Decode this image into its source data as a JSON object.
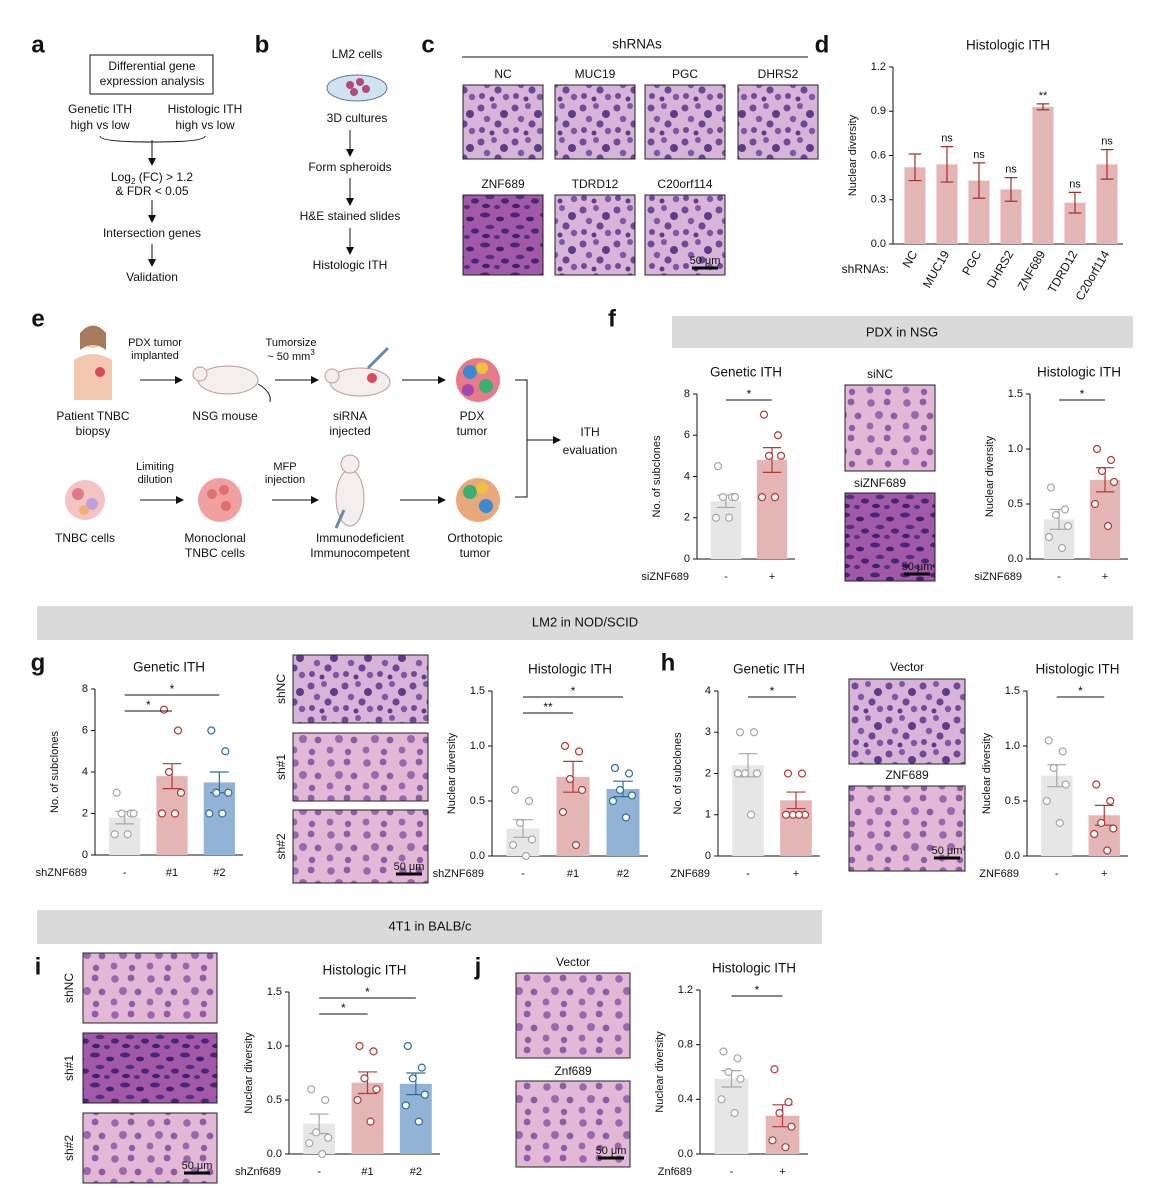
{
  "panel_labels": [
    "a",
    "b",
    "c",
    "d",
    "e",
    "f",
    "g",
    "h",
    "i",
    "j"
  ],
  "panel_a": {
    "box": [
      "Differential gene",
      "expression analysis"
    ],
    "genetic": [
      "Genetic ITH",
      "high vs low"
    ],
    "histologic": [
      "Histologic ITH",
      "high vs low"
    ],
    "criteria": {
      "log": "Log",
      "sub": "2",
      "rest": " (FC) > 1.2",
      "fdr": "& FDR < 0.05"
    },
    "steps": [
      "Intersection genes",
      "Validation"
    ]
  },
  "panel_b": {
    "steps": [
      "LM2 cells",
      "3D cultures",
      "Form spheroids",
      "H&E stained slides",
      "Histologic ITH"
    ]
  },
  "panel_c": {
    "header": "shRNAs",
    "images": [
      "NC",
      "MUC19",
      "PGC",
      "DHRS2",
      "ZNF689",
      "TDRD12",
      "C20orf114"
    ]
  },
  "scale_bar": "50 μm",
  "panel_e": {
    "implant": [
      "PDX tumor",
      "implanted"
    ],
    "size": "Tumorsize",
    "size_value": "~ 50 mm",
    "size_sup": "3",
    "dilution": [
      "Limiting",
      "dilution"
    ],
    "mfp": [
      "MFP",
      "injection"
    ],
    "row1": [
      [
        "Patient TNBC",
        "biopsy"
      ],
      [
        "NSG mouse"
      ],
      [
        "siRNA",
        "injected"
      ],
      [
        "PDX",
        "tumor"
      ]
    ],
    "row2": [
      [
        "TNBC cells"
      ],
      [
        "Monoclonal",
        "TNBC cells"
      ],
      [
        "Immunodeficient",
        "Immunocompetent"
      ],
      [
        "Orthotopic",
        "tumor"
      ]
    ],
    "outcome": [
      "ITH",
      "evaluation"
    ]
  },
  "sections": [
    "PDX in NSG",
    "LM2 in NOD/SCID",
    "4T1 in BALB/c"
  ],
  "image_labels": {
    "f": [
      "siNC",
      "siZNF689"
    ],
    "g": [
      "shNC",
      "sh#1",
      "sh#2"
    ],
    "h": [
      "Vector",
      "ZNF689"
    ],
    "i": [
      "shNC",
      "sh#1",
      "sh#2"
    ],
    "j": [
      "Vector",
      "Znf689"
    ]
  },
  "chart_data": [
    {
      "type": "bar",
      "title": "Histologic ITH",
      "ylabel": "Nuclear diversity",
      "xlabel": "shRNAs:",
      "categories": [
        "NC",
        "MUC19",
        "PGC",
        "DHRS2",
        "ZNF689",
        "TDRD12",
        "C20orf114"
      ],
      "values": [
        0.52,
        0.54,
        0.43,
        0.37,
        0.93,
        0.28,
        0.54
      ],
      "errors": [
        0.09,
        0.12,
        0.12,
        0.08,
        0.02,
        0.07,
        0.1
      ],
      "annotations": [
        null,
        "ns",
        "ns",
        "ns",
        "**",
        "ns",
        "ns"
      ],
      "color": "#e3b5b5",
      "error_color": "#a03030",
      "ylim": [
        0,
        1.2
      ],
      "yticks": [
        {
          "value": 0,
          "label": "0.0"
        },
        0.3,
        0.6,
        0.9,
        1.2
      ]
    },
    {
      "type": "bar",
      "title": "Genetic ITH",
      "ylabel": "No. of subclones",
      "xlabel": "siZNF689",
      "categories": [
        "-",
        "+"
      ],
      "values": [
        2.8,
        4.8
      ],
      "errors": [
        0.3,
        0.6
      ],
      "points": [
        [
          4.5,
          3,
          3,
          3,
          2,
          2
        ],
        [
          7,
          6,
          5,
          5,
          3,
          3
        ]
      ],
      "colors": [
        "#e6e6e6",
        "#e3b5b5"
      ],
      "point_colors": [
        "#a6a6a6",
        "#b03a3a"
      ],
      "comparisons": [
        {
          "pair": [
            0,
            1
          ],
          "label": "*"
        }
      ],
      "ylim": [
        0,
        8
      ],
      "yticks": [
        0,
        2,
        4,
        6,
        8
      ]
    },
    {
      "type": "bar",
      "title": "Histologic ITH",
      "ylabel": "Nuclear diversity",
      "xlabel": "siZNF689",
      "categories": [
        "-",
        "+"
      ],
      "values": [
        0.36,
        0.72
      ],
      "errors": [
        0.09,
        0.11
      ],
      "points": [
        [
          0.65,
          0.45,
          0.4,
          0.3,
          0.2,
          0.1
        ],
        [
          1.0,
          0.9,
          0.8,
          0.7,
          0.5,
          0.3
        ]
      ],
      "colors": [
        "#e6e6e6",
        "#e3b5b5"
      ],
      "point_colors": [
        "#a6a6a6",
        "#b03a3a"
      ],
      "comparisons": [
        {
          "pair": [
            0,
            1
          ],
          "label": "*"
        }
      ],
      "ylim": [
        0,
        1.5
      ],
      "yticks": [
        {
          "value": 0,
          "label": "0.0"
        },
        0.5,
        {
          "value": 1,
          "label": "1.0"
        },
        1.5
      ]
    },
    {
      "type": "bar",
      "title": "Genetic ITH",
      "ylabel": "No. of subclones",
      "xlabel": "shZNF689",
      "categories": [
        "-",
        "#1",
        "#2"
      ],
      "values": [
        1.8,
        3.8,
        3.5
      ],
      "errors": [
        0.3,
        0.6,
        0.5
      ],
      "points": [
        [
          3,
          2,
          2,
          2,
          1,
          1
        ],
        [
          7,
          6,
          4,
          3,
          2,
          2
        ],
        [
          6,
          5,
          3,
          3,
          2,
          2
        ]
      ],
      "colors": [
        "#e6e6e6",
        "#e3b5b5",
        "#93b3d6"
      ],
      "point_colors": [
        "#a6a6a6",
        "#b03a3a",
        "#2f6f96"
      ],
      "comparisons": [
        {
          "pair": [
            0,
            1
          ],
          "label": "*"
        },
        {
          "pair": [
            0,
            2
          ],
          "label": "*"
        }
      ],
      "ylim": [
        0,
        8
      ],
      "yticks": [
        0,
        2,
        4,
        6,
        8
      ]
    },
    {
      "type": "bar",
      "title": "Histologic ITH",
      "ylabel": "Nuclear diversity",
      "xlabel": "shZNF689",
      "categories": [
        "-",
        "#1",
        "#2"
      ],
      "values": [
        0.25,
        0.72,
        0.61
      ],
      "errors": [
        0.08,
        0.14,
        0.07
      ],
      "points": [
        [
          0.6,
          0.5,
          0.3,
          0.15,
          0.1,
          0.0
        ],
        [
          1.0,
          0.95,
          0.7,
          0.6,
          0.4,
          0.1
        ],
        [
          0.8,
          0.75,
          0.6,
          0.55,
          0.5,
          0.35
        ]
      ],
      "colors": [
        "#e6e6e6",
        "#e3b5b5",
        "#93b3d6"
      ],
      "point_colors": [
        "#a6a6a6",
        "#b03a3a",
        "#2f6f96"
      ],
      "comparisons": [
        {
          "pair": [
            0,
            1
          ],
          "label": "**"
        },
        {
          "pair": [
            0,
            2
          ],
          "label": "*"
        }
      ],
      "ylim": [
        0,
        1.5
      ],
      "yticks": [
        {
          "value": 0,
          "label": "0.0"
        },
        0.5,
        {
          "value": 1,
          "label": "1.0"
        },
        1.5
      ]
    },
    {
      "type": "bar",
      "title": "Genetic ITH",
      "ylabel": "No. of subclones",
      "xlabel": "ZNF689",
      "categories": [
        "-",
        "+"
      ],
      "values": [
        2.2,
        1.35
      ],
      "errors": [
        0.28,
        0.2
      ],
      "points": [
        [
          3,
          3,
          2,
          2,
          2,
          1
        ],
        [
          2,
          2,
          1,
          1,
          1,
          1
        ]
      ],
      "colors": [
        "#e6e6e6",
        "#e3b5b5"
      ],
      "point_colors": [
        "#a6a6a6",
        "#b03a3a"
      ],
      "comparisons": [
        {
          "pair": [
            0,
            1
          ],
          "label": "*"
        }
      ],
      "ylim": [
        0,
        4
      ],
      "yticks": [
        0,
        1,
        2,
        3,
        4
      ]
    },
    {
      "type": "bar",
      "title": "Histologic ITH",
      "ylabel": "Nuclear diversity",
      "xlabel": "ZNF689",
      "categories": [
        "-",
        "+"
      ],
      "values": [
        0.73,
        0.37
      ],
      "errors": [
        0.1,
        0.09
      ],
      "points": [
        [
          1.05,
          0.95,
          0.8,
          0.65,
          0.5,
          0.3
        ],
        [
          0.65,
          0.5,
          0.3,
          0.25,
          0.2,
          0.05
        ]
      ],
      "colors": [
        "#e6e6e6",
        "#e3b5b5"
      ],
      "point_colors": [
        "#a6a6a6",
        "#b03a3a"
      ],
      "comparisons": [
        {
          "pair": [
            0,
            1
          ],
          "label": "*"
        }
      ],
      "ylim": [
        0,
        1.5
      ],
      "yticks": [
        {
          "value": 0,
          "label": "0.0"
        },
        0.5,
        {
          "value": 1,
          "label": "1.0"
        },
        1.5
      ]
    },
    {
      "type": "bar",
      "title": "Histologic ITH",
      "ylabel": "Nuclear diversity",
      "xlabel": "shZnf689",
      "categories": [
        "-",
        "#1",
        "#2"
      ],
      "values": [
        0.28,
        0.66,
        0.65
      ],
      "errors": [
        0.09,
        0.1,
        0.1
      ],
      "points": [
        [
          0.6,
          0.5,
          0.2,
          0.15,
          0.1,
          0.0
        ],
        [
          1.0,
          0.95,
          0.7,
          0.6,
          0.5,
          0.3
        ],
        [
          1.0,
          0.8,
          0.7,
          0.55,
          0.45,
          0.3
        ]
      ],
      "colors": [
        "#e6e6e6",
        "#e3b5b5",
        "#93b3d6"
      ],
      "point_colors": [
        "#a6a6a6",
        "#b03a3a",
        "#2f6f96"
      ],
      "comparisons": [
        {
          "pair": [
            0,
            1
          ],
          "label": "*"
        },
        {
          "pair": [
            0,
            2
          ],
          "label": "*"
        }
      ],
      "ylim": [
        0,
        1.5
      ],
      "yticks": [
        {
          "value": 0,
          "label": "0.0"
        },
        0.5,
        {
          "value": 1,
          "label": "1.0"
        },
        1.5
      ]
    },
    {
      "type": "bar",
      "title": "Histologic ITH",
      "ylabel": "Nuclear diversity",
      "xlabel": "Znf689",
      "categories": [
        "-",
        "+"
      ],
      "values": [
        0.55,
        0.28
      ],
      "errors": [
        0.06,
        0.08
      ],
      "points": [
        [
          0.75,
          0.7,
          0.6,
          0.55,
          0.4,
          0.3
        ],
        [
          0.62,
          0.38,
          0.3,
          0.2,
          0.1,
          0.05
        ]
      ],
      "colors": [
        "#e6e6e6",
        "#e3b5b5"
      ],
      "point_colors": [
        "#a6a6a6",
        "#b03a3a"
      ],
      "comparisons": [
        {
          "pair": [
            0,
            1
          ],
          "label": "*"
        }
      ],
      "ylim": [
        0,
        1.2
      ],
      "yticks": [
        {
          "value": 0,
          "label": "0.0"
        },
        0.4,
        0.8,
        1.2
      ]
    }
  ]
}
